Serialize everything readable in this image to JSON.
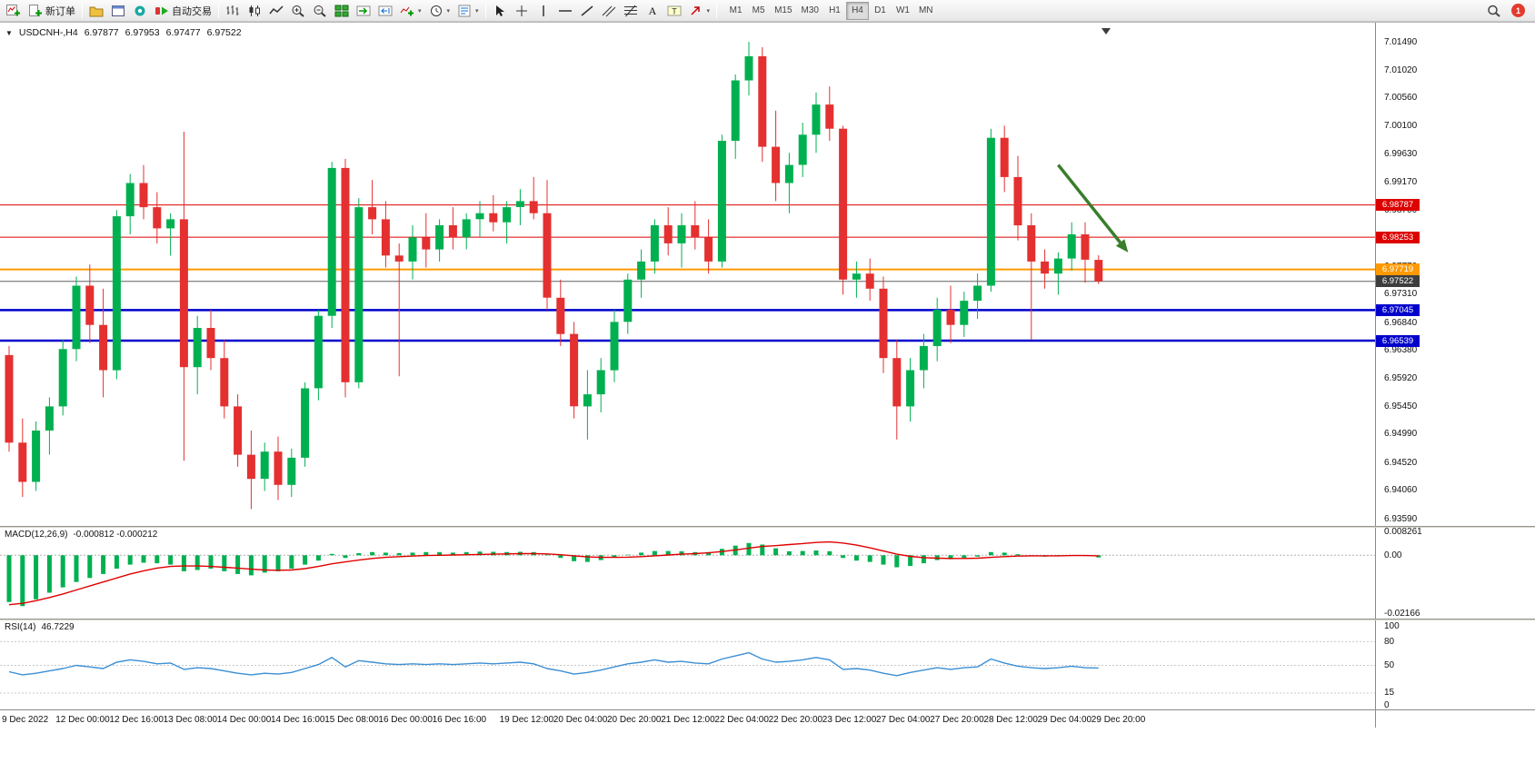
{
  "toolbar": {
    "buttons": [
      {
        "name": "new-chart",
        "icon": "chart-plus"
      },
      {
        "name": "new-order",
        "icon": "order",
        "label": "新订单"
      },
      {
        "sep": true
      },
      {
        "name": "profiles",
        "icon": "profiles"
      },
      {
        "name": "data-window",
        "icon": "data-window"
      },
      {
        "name": "navigator",
        "icon": "navigator"
      },
      {
        "name": "auto-trading",
        "icon": "autotrade",
        "label": "自动交易"
      },
      {
        "sep": true
      },
      {
        "name": "bar-chart",
        "icon": "bars"
      },
      {
        "name": "candlestick-chart",
        "icon": "candles"
      },
      {
        "name": "line-chart",
        "icon": "line"
      },
      {
        "name": "zoom-in",
        "icon": "zoom-in"
      },
      {
        "name": "zoom-out",
        "icon": "zoom-out"
      },
      {
        "name": "tile-windows",
        "icon": "tile"
      },
      {
        "name": "auto-scroll",
        "icon": "autoscroll"
      },
      {
        "name": "chart-shift",
        "icon": "shift"
      },
      {
        "name": "indicators",
        "icon": "indicator-add",
        "dropdown": true
      },
      {
        "name": "periods",
        "icon": "clock",
        "dropdown": true
      },
      {
        "name": "templates",
        "icon": "template",
        "dropdown": true
      },
      {
        "sep": true
      },
      {
        "name": "cursor",
        "icon": "cursor"
      },
      {
        "name": "crosshair",
        "icon": "crosshair"
      },
      {
        "name": "vertical-line",
        "icon": "vline"
      },
      {
        "name": "horizontal-line",
        "icon": "hline"
      },
      {
        "name": "trendline",
        "icon": "trendline"
      },
      {
        "name": "equidistant-channel",
        "icon": "channel"
      },
      {
        "name": "fibonacci",
        "icon": "fibo"
      },
      {
        "name": "text",
        "icon": "text"
      },
      {
        "name": "text-label",
        "icon": "label"
      },
      {
        "name": "arrows",
        "icon": "arrows",
        "dropdown": true
      },
      {
        "sep": true
      }
    ],
    "timeframes": {
      "items": [
        "M1",
        "M5",
        "M15",
        "M30",
        "H1",
        "H4",
        "D1",
        "W1",
        "MN"
      ],
      "active": "H4"
    },
    "notification_count": "1"
  },
  "chart": {
    "title": {
      "collapse_icon": "▼",
      "symbol_period": "USDCNH-,H4",
      "open": "6.97877",
      "high": "6.97953",
      "low": "6.97477",
      "close": "6.97522"
    }
  },
  "chart_data": {
    "type": "candlestick",
    "symbol": "USDCNH-",
    "period": "H4",
    "ylim": [
      6.9359,
      7.0149
    ],
    "y_axis_labels": [
      "7.01490",
      "7.01020",
      "7.00560",
      "7.00100",
      "6.99630",
      "6.99170",
      "6.98700",
      "6.98230",
      "6.97770",
      "6.97310",
      "6.96840",
      "6.96380",
      "6.95920",
      "6.95450",
      "6.94990",
      "6.94520",
      "6.94060",
      "6.93590"
    ],
    "ohlc": [
      [
        6.963,
        6.9645,
        6.947,
        6.9485
      ],
      [
        6.9485,
        6.9525,
        6.9395,
        6.942
      ],
      [
        6.942,
        6.952,
        6.9405,
        6.9505
      ],
      [
        6.9505,
        6.956,
        6.9465,
        6.9545
      ],
      [
        6.9545,
        6.9655,
        6.953,
        6.964
      ],
      [
        6.964,
        6.976,
        6.962,
        6.9745
      ],
      [
        6.9745,
        6.978,
        6.965,
        6.968
      ],
      [
        6.968,
        6.974,
        6.956,
        6.9605
      ],
      [
        6.9605,
        6.987,
        6.959,
        6.986
      ],
      [
        6.986,
        6.993,
        6.983,
        6.9915
      ],
      [
        6.9915,
        6.9945,
        6.9855,
        6.9875
      ],
      [
        6.9875,
        6.99,
        6.9815,
        6.984
      ],
      [
        6.984,
        6.9865,
        6.9795,
        6.9855
      ],
      [
        6.9855,
        7.0,
        6.9455,
        6.961
      ],
      [
        6.961,
        6.9695,
        6.9565,
        6.9675
      ],
      [
        6.9675,
        6.9705,
        6.9605,
        6.9625
      ],
      [
        6.9625,
        6.9655,
        6.9525,
        6.9545
      ],
      [
        6.9545,
        6.9565,
        6.9445,
        6.9465
      ],
      [
        6.9465,
        6.9505,
        6.9375,
        6.9425
      ],
      [
        6.9425,
        6.9485,
        6.9405,
        6.947
      ],
      [
        6.947,
        6.9495,
        6.939,
        6.9415
      ],
      [
        6.9415,
        6.9475,
        6.9395,
        6.946
      ],
      [
        6.946,
        6.9585,
        6.9445,
        6.9575
      ],
      [
        6.9575,
        6.9705,
        6.9555,
        6.9695
      ],
      [
        6.9695,
        6.995,
        6.9675,
        6.994
      ],
      [
        6.994,
        6.9955,
        6.956,
        6.9585
      ],
      [
        6.9585,
        6.989,
        6.9575,
        6.9875
      ],
      [
        6.9875,
        6.992,
        6.983,
        6.9855
      ],
      [
        6.9855,
        6.9885,
        6.9775,
        6.9795
      ],
      [
        6.9795,
        6.9815,
        6.9595,
        6.9785
      ],
      [
        6.9785,
        6.9845,
        6.9755,
        6.9825
      ],
      [
        6.9825,
        6.9865,
        6.9775,
        6.9805
      ],
      [
        6.9805,
        6.9855,
        6.9785,
        6.9845
      ],
      [
        6.9845,
        6.9875,
        6.9805,
        6.9825
      ],
      [
        6.9825,
        6.9865,
        6.9805,
        6.9855
      ],
      [
        6.9855,
        6.9885,
        6.9825,
        6.9865
      ],
      [
        6.9865,
        6.9895,
        6.9835,
        6.985
      ],
      [
        6.985,
        6.9885,
        6.9815,
        6.9875
      ],
      [
        6.9875,
        6.9905,
        6.9845,
        6.9885
      ],
      [
        6.9885,
        6.9925,
        6.9855,
        6.9865
      ],
      [
        6.9865,
        6.992,
        6.9705,
        6.9725
      ],
      [
        6.9725,
        6.9755,
        6.9645,
        6.9665
      ],
      [
        6.9665,
        6.9685,
        6.9525,
        6.9545
      ],
      [
        6.9545,
        6.9605,
        6.949,
        6.9565
      ],
      [
        6.9565,
        6.9625,
        6.9535,
        6.9605
      ],
      [
        6.9605,
        6.9705,
        6.9585,
        6.9685
      ],
      [
        6.9685,
        6.9765,
        6.9665,
        6.9755
      ],
      [
        6.9755,
        6.9805,
        6.9725,
        6.9785
      ],
      [
        6.9785,
        6.9855,
        6.9765,
        6.9845
      ],
      [
        6.9845,
        6.9875,
        6.9795,
        6.9815
      ],
      [
        6.9815,
        6.9865,
        6.9775,
        6.9845
      ],
      [
        6.9845,
        6.9885,
        6.9805,
        6.9825
      ],
      [
        6.9825,
        6.9855,
        6.9765,
        6.9785
      ],
      [
        6.9785,
        6.9995,
        6.9775,
        6.9985
      ],
      [
        6.9985,
        7.0095,
        6.9955,
        7.0085
      ],
      [
        7.0085,
        7.0149,
        7.006,
        7.0125
      ],
      [
        7.0125,
        7.014,
        6.995,
        6.9975
      ],
      [
        6.9975,
        7.0035,
        6.9885,
        6.9915
      ],
      [
        6.9915,
        6.9965,
        6.9865,
        6.9945
      ],
      [
        6.9945,
        7.0015,
        6.9925,
        6.9995
      ],
      [
        6.9995,
        7.0065,
        6.9965,
        7.0045
      ],
      [
        7.0045,
        7.0075,
        6.9985,
        7.0005
      ],
      [
        7.0005,
        7.001,
        6.973,
        6.9755
      ],
      [
        6.9755,
        6.9785,
        6.9725,
        6.9765
      ],
      [
        6.9765,
        6.979,
        6.972,
        6.974
      ],
      [
        6.974,
        6.976,
        6.96,
        6.9625
      ],
      [
        6.9625,
        6.9655,
        6.949,
        6.9545
      ],
      [
        6.9545,
        6.9625,
        6.952,
        6.9605
      ],
      [
        6.9605,
        6.9665,
        6.9575,
        6.9645
      ],
      [
        6.9645,
        6.9725,
        6.962,
        6.9705
      ],
      [
        6.9705,
        6.9745,
        6.965,
        6.968
      ],
      [
        6.968,
        6.9735,
        6.966,
        6.972
      ],
      [
        6.972,
        6.9765,
        6.969,
        6.9745
      ],
      [
        6.9745,
        7.0005,
        6.9735,
        6.999
      ],
      [
        6.999,
        7.001,
        6.99,
        6.9925
      ],
      [
        6.9925,
        6.996,
        6.982,
        6.9845
      ],
      [
        6.9845,
        6.9865,
        6.9655,
        6.9785
      ],
      [
        6.9785,
        6.9805,
        6.974,
        6.9765
      ],
      [
        6.9765,
        6.98,
        6.973,
        6.979
      ],
      [
        6.979,
        6.985,
        6.977,
        6.983
      ],
      [
        6.983,
        6.985,
        6.975,
        6.9788
      ],
      [
        6.97877,
        6.97953,
        6.97477,
        6.97522
      ]
    ],
    "time_labels": [
      {
        "label": "9 Dec 2022",
        "index": 0
      },
      {
        "label": "12 Dec 00:00",
        "index": 4
      },
      {
        "label": "12 Dec 16:00",
        "index": 8
      },
      {
        "label": "13 Dec 08:00",
        "index": 12
      },
      {
        "label": "14 Dec 00:00",
        "index": 16
      },
      {
        "label": "14 Dec 16:00",
        "index": 20
      },
      {
        "label": "15 Dec 08:00",
        "index": 24
      },
      {
        "label": "16 Dec 00:00",
        "index": 28
      },
      {
        "label": "16 Dec 16:00",
        "index": 32
      },
      {
        "label": "19 Dec 12:00",
        "index": 37
      },
      {
        "label": "20 Dec 04:00",
        "index": 41
      },
      {
        "label": "20 Dec 20:00",
        "index": 45
      },
      {
        "label": "21 Dec 12:00",
        "index": 49
      },
      {
        "label": "22 Dec 04:00",
        "index": 53
      },
      {
        "label": "22 Dec 20:00",
        "index": 57
      },
      {
        "label": "23 Dec 12:00",
        "index": 61
      },
      {
        "label": "27 Dec 04:00",
        "index": 65
      },
      {
        "label": "27 Dec 20:00",
        "index": 69
      },
      {
        "label": "28 Dec 12:00",
        "index": 73
      },
      {
        "label": "29 Dec 04:00",
        "index": 77
      },
      {
        "label": "29 Dec 20:00",
        "index": 81
      }
    ],
    "hlines": [
      {
        "value": 6.98787,
        "color": "#dd0000",
        "width": 1
      },
      {
        "value": 6.98253,
        "color": "#dd0000",
        "width": 1
      },
      {
        "value": 6.97719,
        "color": "#ff9900",
        "width": 2
      },
      {
        "value": 6.97045,
        "color": "#0000cc",
        "width": 2.5
      },
      {
        "value": 6.96539,
        "color": "#0000cc",
        "width": 2.5
      }
    ],
    "price_tags": [
      {
        "value": "6.98787",
        "bg": "#dd0000"
      },
      {
        "value": "6.98253",
        "bg": "#dd0000"
      },
      {
        "value": "6.97719",
        "bg": "#ff9900"
      },
      {
        "value": "6.97522",
        "bg": "#3d3d3d"
      },
      {
        "value": "6.97045",
        "bg": "#0000cc"
      },
      {
        "value": "6.96539",
        "bg": "#0000cc"
      }
    ],
    "current_price": {
      "value": 6.97522,
      "line_color": "#606060"
    },
    "arrow_annotation": {
      "from_index": 78,
      "from_price": 6.9945,
      "to_index": 83.2,
      "to_price": 6.98,
      "color": "#3a7d2c",
      "direction": "down-right"
    },
    "colors": {
      "up": "#00b050",
      "down": "#e43030",
      "macd_hist": "#00b050",
      "macd_signal": "#e00000",
      "rsi_line": "#3b8fd4"
    },
    "macd": {
      "label": "MACD(12,26,9)",
      "values_text": "-0.000812 -0.000212",
      "range": [
        -0.02166,
        0.008261
      ],
      "axis_labels": [
        "0.008261",
        "0.00",
        "-0.02166"
      ],
      "histogram": [
        -0.0175,
        -0.019,
        -0.0165,
        -0.014,
        -0.012,
        -0.01,
        -0.0085,
        -0.007,
        -0.005,
        -0.0035,
        -0.0028,
        -0.003,
        -0.0035,
        -0.006,
        -0.0055,
        -0.005,
        -0.006,
        -0.007,
        -0.0075,
        -0.0065,
        -0.006,
        -0.005,
        -0.0035,
        -0.002,
        0.0005,
        -0.001,
        0.0008,
        0.0012,
        0.001,
        0.0008,
        0.001,
        0.0012,
        0.0012,
        0.001,
        0.0012,
        0.0014,
        0.0013,
        0.0012,
        0.0013,
        0.0012,
        0.0002,
        -0.001,
        -0.0022,
        -0.0025,
        -0.0018,
        -0.0008,
        0.0002,
        0.001,
        0.0016,
        0.0016,
        0.0015,
        0.0012,
        0.0012,
        0.0024,
        0.0036,
        0.0046,
        0.004,
        0.0026,
        0.0015,
        0.0016,
        0.0018,
        0.0015,
        -0.001,
        -0.002,
        -0.0025,
        -0.0035,
        -0.0045,
        -0.004,
        -0.003,
        -0.0018,
        -0.0015,
        -0.001,
        -0.0005,
        0.0012,
        0.001,
        0.0004,
        -0.0002,
        -0.0005,
        -0.0004,
        0.0,
        -0.0003,
        -0.000812
      ],
      "signal": [
        -0.0185,
        -0.018,
        -0.017,
        -0.0158,
        -0.0145,
        -0.013,
        -0.0115,
        -0.01,
        -0.0085,
        -0.007,
        -0.0058,
        -0.0048,
        -0.0042,
        -0.004,
        -0.004,
        -0.0042,
        -0.0045,
        -0.0048,
        -0.0052,
        -0.0055,
        -0.0056,
        -0.0055,
        -0.005,
        -0.0042,
        -0.0032,
        -0.0025,
        -0.0018,
        -0.0012,
        -0.0008,
        -0.0005,
        -0.0003,
        -0.0001,
        0.0,
        0.0001,
        0.0002,
        0.0003,
        0.0004,
        0.0005,
        0.0006,
        0.0006,
        0.0005,
        0.0002,
        -0.0002,
        -0.0006,
        -0.0008,
        -0.0008,
        -0.0007,
        -0.0005,
        -0.0002,
        0.0001,
        0.0004,
        0.0006,
        0.0009,
        0.0014,
        0.002,
        0.0027,
        0.0033,
        0.0036,
        0.004,
        0.0044,
        0.0048,
        0.005,
        0.0046,
        0.0038,
        0.0028,
        0.0016,
        0.0004,
        -0.0004,
        -0.0009,
        -0.0011,
        -0.0012,
        -0.0012,
        -0.0011,
        -0.0008,
        -0.0005,
        -0.0003,
        -0.0002,
        -0.0002,
        -0.0002,
        -0.0001,
        -0.0001,
        -0.000212
      ]
    },
    "rsi": {
      "label": "RSI(14)",
      "value_text": "46.7229",
      "range": [
        0,
        100
      ],
      "axis_labels": [
        "100",
        "80",
        "50",
        "15",
        "0"
      ],
      "level_lines": [
        80,
        50,
        15
      ],
      "values": [
        42,
        38,
        40,
        43,
        46,
        50,
        48,
        46,
        54,
        57,
        55,
        52,
        53,
        45,
        47,
        46,
        43,
        40,
        38,
        40,
        39,
        41,
        46,
        51,
        60,
        48,
        56,
        54,
        52,
        51,
        52,
        51,
        52,
        51,
        52,
        53,
        52,
        53,
        54,
        52,
        46,
        43,
        39,
        41,
        44,
        48,
        52,
        54,
        57,
        54,
        55,
        53,
        52,
        58,
        62,
        66,
        58,
        54,
        55,
        57,
        60,
        57,
        45,
        46,
        44,
        40,
        37,
        41,
        44,
        47,
        45,
        47,
        48,
        58,
        53,
        49,
        47,
        46,
        47,
        49,
        47,
        46.7229
      ]
    }
  }
}
